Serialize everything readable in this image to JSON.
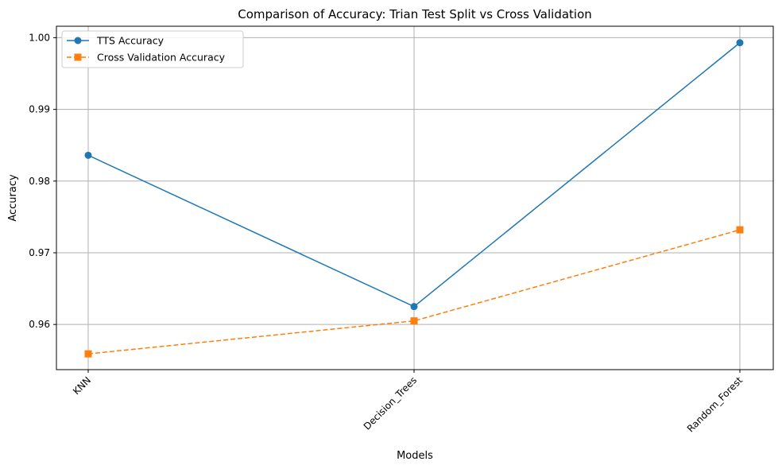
{
  "chart_data": {
    "type": "line",
    "title": "Comparison of Accuracy: Trian Test Split  vs Cross Validation",
    "xlabel": "Models",
    "ylabel": "Accuracy",
    "categories": [
      "KNN",
      "Decision_Trees",
      "Random_Forest"
    ],
    "series": [
      {
        "name": "TTS Accuracy",
        "values": [
          0.9836,
          0.9625,
          0.9993
        ],
        "color": "#1f77b4",
        "marker": "circle",
        "linestyle": "solid"
      },
      {
        "name": "Cross Validation Accuracy",
        "values": [
          0.9559,
          0.9605,
          0.9732
        ],
        "color": "#ff7f0e",
        "marker": "square",
        "linestyle": "dashed"
      }
    ],
    "ylim": [
      0.9537,
      1.0016
    ],
    "yticks": [
      0.96,
      0.97,
      0.98,
      0.99,
      1.0
    ],
    "ytick_labels": [
      "0.96",
      "0.97",
      "0.98",
      "0.99",
      "1.00"
    ],
    "xtick_rotation": 45,
    "grid": true,
    "legend_position": "upper-left"
  }
}
